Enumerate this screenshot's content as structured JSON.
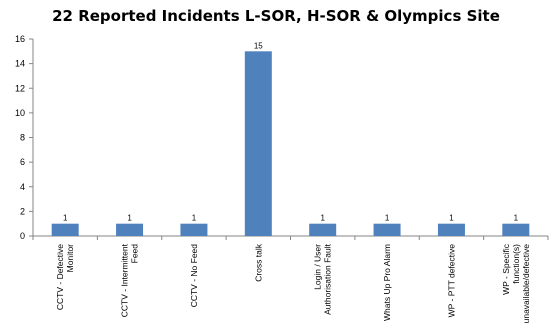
{
  "chart_data": {
    "type": "bar",
    "title": "22 Reported Incidents L-SOR, H-SOR & Olympics Site",
    "xlabel": "",
    "ylabel": "",
    "ylim": [
      0,
      16
    ],
    "yticks": [
      0,
      2,
      4,
      6,
      8,
      10,
      12,
      14,
      16
    ],
    "grid": false,
    "legend": "none",
    "bar_color": "#4f81bd",
    "categories": [
      [
        "CCTV - Defective",
        "Monitor"
      ],
      [
        "CCTV - Intermittent",
        "Feed"
      ],
      [
        "CCTV - No Feed"
      ],
      [
        "Cross talk"
      ],
      [
        "Login / User",
        "Authorisation Fault"
      ],
      [
        "Whats Up Pro Alarm"
      ],
      [
        "WP - PTT defective"
      ],
      [
        "WP - Specific",
        "function(s)",
        "unavailable/defective"
      ]
    ],
    "values": [
      1,
      1,
      1,
      15,
      1,
      1,
      1,
      1
    ],
    "data_labels": [
      "1",
      "1",
      "1",
      "15",
      "1",
      "1",
      "1",
      "1"
    ]
  }
}
